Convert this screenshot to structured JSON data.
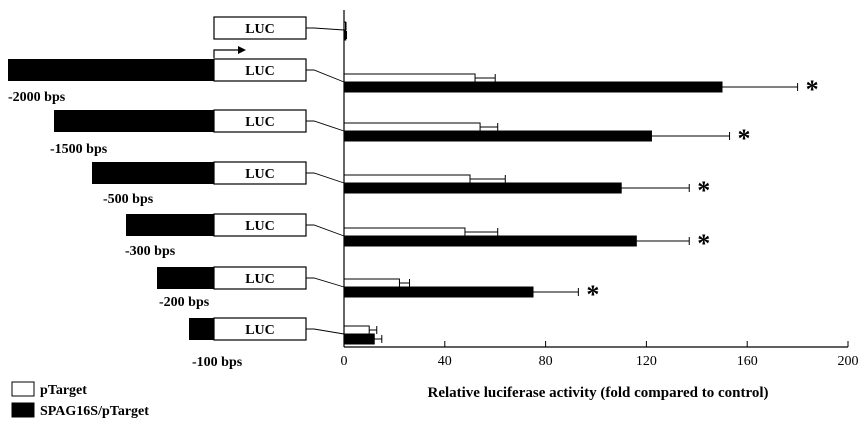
{
  "chart_data": {
    "type": "bar",
    "orientation": "horizontal",
    "xlabel": "Relative luciferase activity (fold compared to control)",
    "xlim": [
      0,
      200
    ],
    "xticks": [
      "0",
      "40",
      "80",
      "120",
      "160",
      "200"
    ],
    "construct_label": "LUC",
    "constructs": [
      {
        "label": "",
        "promoter_bps": 0
      },
      {
        "label": "-2000 bps",
        "promoter_bps": 2000
      },
      {
        "label": "-1500 bps",
        "promoter_bps": 1500
      },
      {
        "label": "-500 bps",
        "promoter_bps": 500
      },
      {
        "label": "-300 bps",
        "promoter_bps": 300
      },
      {
        "label": "-200 bps",
        "promoter_bps": 200
      },
      {
        "label": "-100 bps",
        "promoter_bps": 100
      }
    ],
    "series": [
      {
        "name": "pTarget",
        "color": "#ffffff",
        "values": [
          0.5,
          52,
          54,
          50,
          48,
          22,
          10
        ],
        "errors": [
          0.3,
          8,
          7,
          14,
          13,
          4,
          3
        ]
      },
      {
        "name": "SPAG16S/pTarget",
        "color": "#000000",
        "values": [
          0.7,
          150,
          122,
          110,
          116,
          75,
          12
        ],
        "errors": [
          0.3,
          30,
          31,
          27,
          21,
          18,
          3
        ]
      }
    ],
    "significance": [
      "",
      "*",
      "*",
      "*",
      "*",
      "*",
      ""
    ],
    "legend": {
      "position": "bottom-left"
    },
    "grid": false
  }
}
